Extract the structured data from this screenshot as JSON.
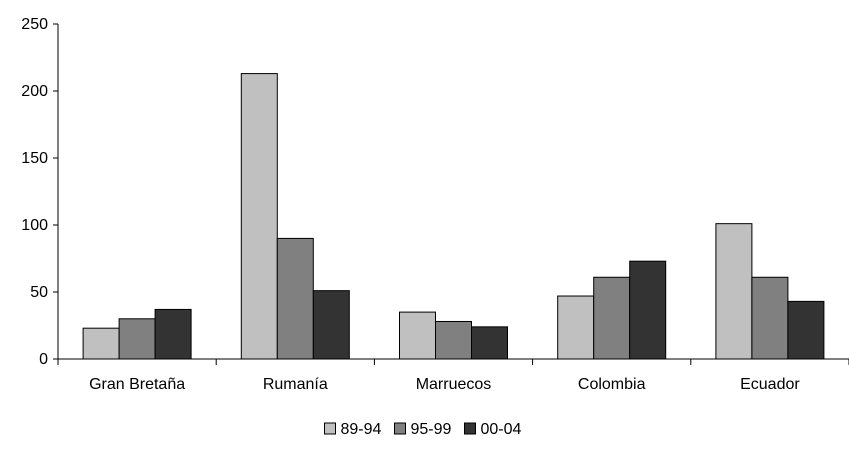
{
  "chart_data": {
    "type": "bar",
    "title": "",
    "xlabel": "",
    "ylabel": "",
    "ylim": [
      0,
      250
    ],
    "yticks": [
      0,
      50,
      100,
      150,
      200,
      250
    ],
    "grid": false,
    "legend_position": "bottom",
    "categories": [
      "Gran Bretaña",
      "Rumanía",
      "Marruecos",
      "Colombia",
      "Ecuador"
    ],
    "series": [
      {
        "name": "89-94",
        "color": "#c0c0c0",
        "values": [
          23,
          213,
          35,
          47,
          101
        ]
      },
      {
        "name": "95-99",
        "color": "#808080",
        "values": [
          30,
          90,
          28,
          61,
          61
        ]
      },
      {
        "name": "00-04",
        "color": "#333333",
        "values": [
          37,
          51,
          24,
          73,
          43
        ]
      }
    ]
  }
}
